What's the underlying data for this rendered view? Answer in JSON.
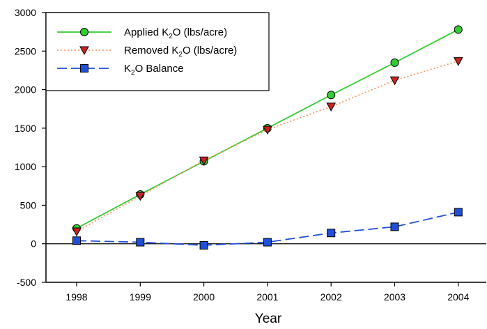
{
  "chart_data": {
    "type": "line",
    "x": [
      1998,
      1999,
      2000,
      2001,
      2002,
      2003,
      2004
    ],
    "x_tick_labels": [
      "1998",
      "1999",
      "2000",
      "2001",
      "2002",
      "2003",
      "2004"
    ],
    "xlabel": "Year",
    "ylabel": "",
    "ylim": [
      -500,
      3000
    ],
    "y_ticks": [
      -500,
      0,
      500,
      1000,
      1500,
      2000,
      2500,
      3000
    ],
    "y_tick_labels": [
      "-500",
      "0",
      "500",
      "1000",
      "1500",
      "2000",
      "2500",
      "3000"
    ],
    "legend_position": "top-left",
    "grid": false,
    "zero_line": true,
    "series": [
      {
        "name_parts": [
          "Applied K",
          "2",
          "O (lbs/acre)"
        ],
        "values": [
          200,
          640,
          1070,
          1500,
          1930,
          2350,
          2780
        ],
        "color": "#33cc33",
        "marker": "circle",
        "marker_fill": "#33cc33",
        "line_style": "solid"
      },
      {
        "name_parts": [
          "Removed K",
          "2",
          "O (lbs/acre)"
        ],
        "values": [
          160,
          620,
          1080,
          1480,
          1780,
          2120,
          2370
        ],
        "color": "#ff9966",
        "marker": "triangle-down",
        "marker_fill": "#cc2222",
        "line_style": "dotted"
      },
      {
        "name_parts": [
          "K",
          "2",
          "O Balance"
        ],
        "values": [
          40,
          20,
          -20,
          20,
          140,
          220,
          410
        ],
        "color": "#1f4fd8",
        "marker": "square",
        "marker_fill": "#1f4fd8",
        "line_style": "dashed"
      }
    ]
  }
}
